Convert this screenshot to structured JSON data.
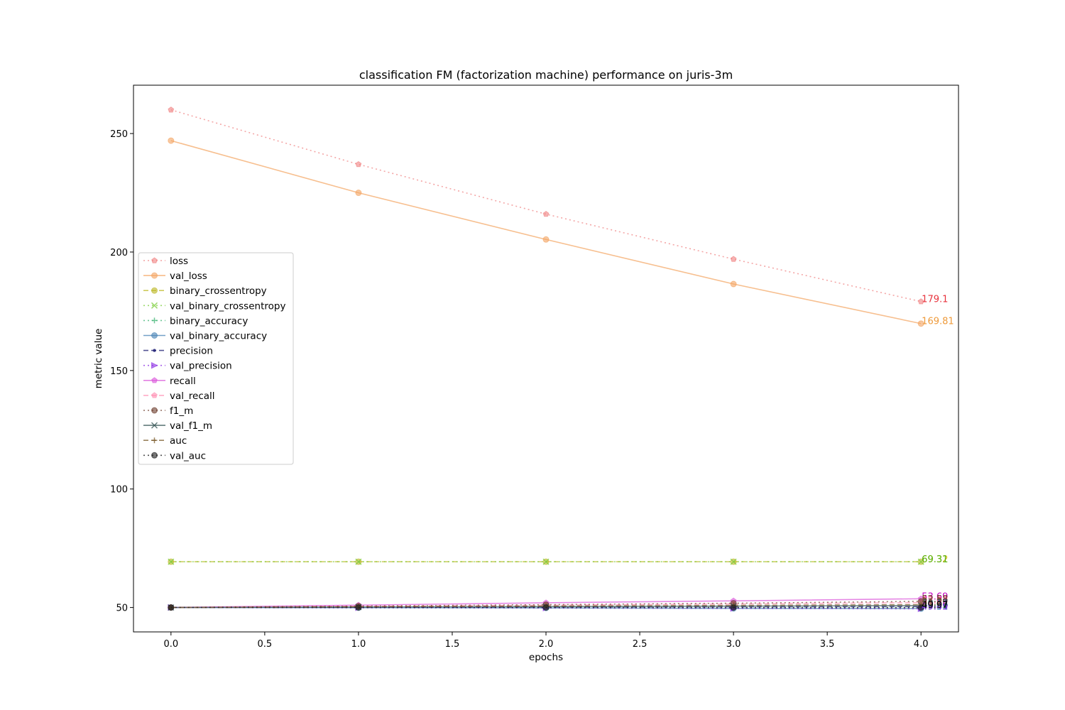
{
  "chart_data": {
    "type": "line",
    "title": "classification FM (factorization machine) performance on juris-3m",
    "xlabel": "epochs",
    "ylabel": "metric value",
    "xlim": [
      -0.2,
      4.2
    ],
    "ylim": [
      39.7,
      270.4
    ],
    "x_ticks": [
      "0.0",
      "0.5",
      "1.0",
      "1.5",
      "2.0",
      "2.5",
      "3.0",
      "3.5",
      "4.0"
    ],
    "x_tick_values": [
      0,
      0.5,
      1,
      1.5,
      2,
      2.5,
      3,
      3.5,
      4
    ],
    "y_ticks": [
      "50",
      "100",
      "150",
      "200",
      "250"
    ],
    "y_tick_values": [
      50,
      100,
      150,
      200,
      250
    ],
    "grid": false,
    "legend_position": "center-left",
    "x": [
      0,
      1,
      2,
      3,
      4
    ],
    "series": [
      {
        "name": "loss",
        "values": [
          260.0,
          237.0,
          216.0,
          197.0,
          179.1
        ],
        "color": "#f08080",
        "dash": "2,4",
        "marker": "pentagon",
        "end_label": "179.1",
        "label_color": "#e8323c"
      },
      {
        "name": "val_loss",
        "values": [
          247.0,
          225.0,
          205.3,
          186.5,
          169.81
        ],
        "color": "#f4a460",
        "dash": "",
        "marker": "circle",
        "end_label": "169.81",
        "label_color": "#ee9a3a"
      },
      {
        "name": "binary_crossentropy",
        "values": [
          69.32,
          69.32,
          69.32,
          69.32,
          69.32
        ],
        "color": "#bdb824",
        "dash": "7,4",
        "marker": "circle",
        "end_label": "69.32",
        "label_color": "#c8b400"
      },
      {
        "name": "val_binary_crossentropy",
        "values": [
          69.31,
          69.31,
          69.31,
          69.31,
          69.31
        ],
        "color": "#7ccd3c",
        "dash": "2,4",
        "marker": "x",
        "end_label": "69.31",
        "label_color": "#5ab414"
      },
      {
        "name": "binary_accuracy",
        "values": [
          50.0,
          50.0,
          50.0,
          50.02,
          50.03
        ],
        "color": "#3cb371",
        "dash": "2,4",
        "marker": "plus",
        "end_label": "50.03",
        "label_color": "#2e8b57"
      },
      {
        "name": "val_binary_accuracy",
        "values": [
          50.0,
          49.9,
          49.8,
          49.6,
          49.51
        ],
        "color": "#4682b4",
        "dash": "",
        "marker": "circle",
        "end_label": "49.51",
        "label_color": "#1f6fb4"
      },
      {
        "name": "precision",
        "values": [
          50.0,
          50.1,
          50.2,
          50.3,
          50.36
        ],
        "color": "#191970",
        "dash": "7,4",
        "marker": "dot",
        "end_label": "50.36",
        "label_color": "#191970"
      },
      {
        "name": "val_precision",
        "values": [
          50.0,
          49.9,
          49.8,
          49.6,
          49.45
        ],
        "color": "#8a2be2",
        "dash": "2,4",
        "marker": "triangle-right",
        "end_label": "49.45",
        "label_color": "#8a2be2"
      },
      {
        "name": "recall",
        "values": [
          50.0,
          51.0,
          52.0,
          52.8,
          53.69
        ],
        "color": "#da55da",
        "dash": "",
        "marker": "pentagon",
        "end_label": "53.69",
        "label_color": "#c000c0"
      },
      {
        "name": "val_recall",
        "values": [
          50.0,
          50.5,
          51.0,
          51.5,
          52.03
        ],
        "color": "#ff8fb3",
        "dash": "7,4",
        "marker": "pentagon",
        "end_label": "52.03",
        "label_color": "#ff5090"
      },
      {
        "name": "f1_m",
        "values": [
          50.0,
          50.6,
          51.2,
          51.8,
          52.58
        ],
        "color": "#6b3a2a",
        "dash": "2,4",
        "marker": "circle",
        "end_label": "52.58",
        "label_color": "#6b3a2a"
      },
      {
        "name": "val_f1_m",
        "values": [
          50.0,
          50.2,
          50.4,
          50.6,
          50.77
        ],
        "color": "#2f4f4f",
        "dash": "",
        "marker": "x",
        "end_label": "50.77",
        "label_color": "#2f4f4f"
      },
      {
        "name": "auc",
        "values": [
          50.0,
          50.3,
          50.6,
          50.9,
          51.2
        ],
        "color": "#7a5a2a",
        "dash": "7,4",
        "marker": "plus",
        "end_label": "51.2",
        "label_color": "#7a5a2a"
      },
      {
        "name": "val_auc",
        "values": [
          50.0,
          50.0,
          50.0,
          49.98,
          49.97
        ],
        "color": "#1a1a1a",
        "dash": "2,4",
        "marker": "circle",
        "end_label": "49.97",
        "label_color": "#000000"
      }
    ]
  }
}
